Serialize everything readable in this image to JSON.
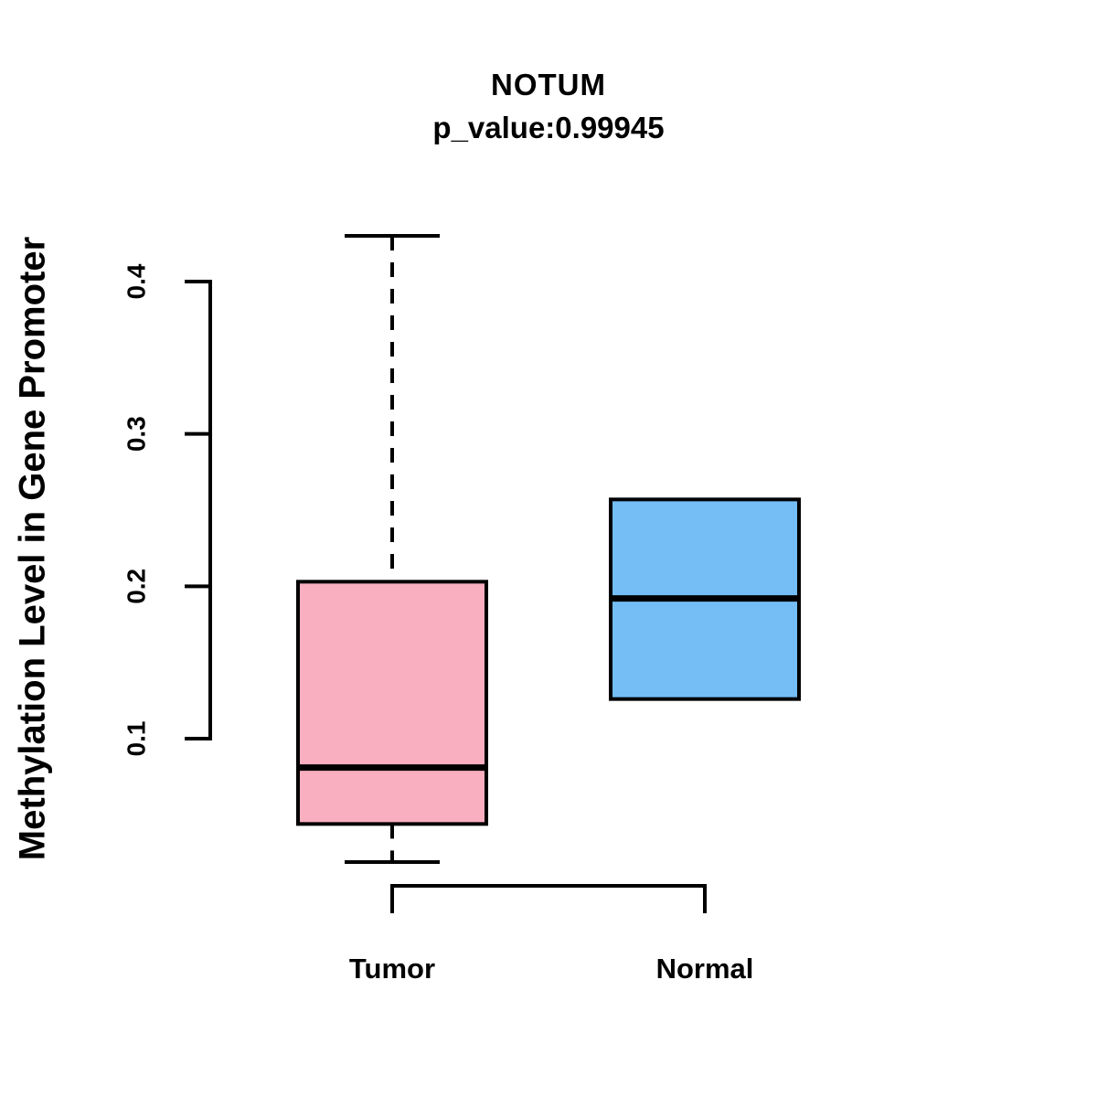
{
  "chart_data": {
    "type": "boxplot",
    "title": "NOTUM",
    "subtitle": "p_value:0.99945",
    "ylabel": "Methylation Level in Gene Promoter",
    "categories": [
      "Tumor",
      "Normal"
    ],
    "y_axis": {
      "ticks": [
        0.1,
        0.2,
        0.3,
        0.4
      ],
      "tick_labels": [
        "0.1",
        "0.2",
        "0.3",
        "0.4"
      ],
      "range": [
        0.1,
        0.4
      ]
    },
    "series": [
      {
        "name": "Tumor",
        "color": "#F9AFC0",
        "min": 0.019,
        "q1": 0.044,
        "median": 0.081,
        "q3": 0.203,
        "max": 0.43,
        "whisker_style": "dashed"
      },
      {
        "name": "Normal",
        "color": "#74BEF5",
        "min": 0.126,
        "q1": 0.126,
        "median": 0.192,
        "q3": 0.257,
        "max": 0.257,
        "whisker_style": "none"
      }
    ],
    "grid": false,
    "legend": false,
    "background": "#FFFFFF",
    "line_color": "#000000"
  }
}
